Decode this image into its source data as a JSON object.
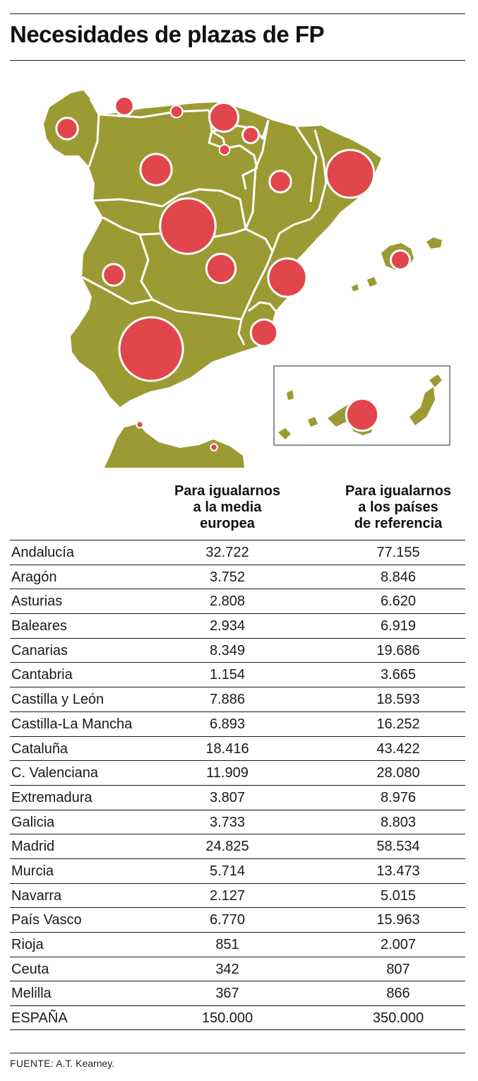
{
  "title": "Necesidades de plazas de FP",
  "colors": {
    "land": "#9c9a33",
    "bubble": "#e0464b",
    "border": "#ffffff"
  },
  "table": {
    "headers": [
      "Para igualarnos\na la media\neuropea",
      "Para igualarnos\na los países\nde referencia"
    ],
    "rows": [
      {
        "region": "Andalucía",
        "media_europea": "32.722",
        "paises_referencia": "77.155"
      },
      {
        "region": "Aragón",
        "media_europea": "3.752",
        "paises_referencia": "8.846"
      },
      {
        "region": "Asturias",
        "media_europea": "2.808",
        "paises_referencia": "6.620"
      },
      {
        "region": "Baleares",
        "media_europea": "2.934",
        "paises_referencia": "6.919"
      },
      {
        "region": "Canarias",
        "media_europea": "8.349",
        "paises_referencia": "19.686"
      },
      {
        "region": "Cantabria",
        "media_europea": "1.154",
        "paises_referencia": "3.665"
      },
      {
        "region": "Castilla y León",
        "media_europea": "7.886",
        "paises_referencia": "18.593"
      },
      {
        "region": "Castilla-La Mancha",
        "media_europea": "6.893",
        "paises_referencia": "16.252"
      },
      {
        "region": "Cataluña",
        "media_europea": "18.416",
        "paises_referencia": "43.422"
      },
      {
        "region": "C. Valenciana",
        "media_europea": "11.909",
        "paises_referencia": "28.080"
      },
      {
        "region": "Extremadura",
        "media_europea": "3.807",
        "paises_referencia": "8.976"
      },
      {
        "region": "Galicia",
        "media_europea": "3.733",
        "paises_referencia": "8.803"
      },
      {
        "region": "Madrid",
        "media_europea": "24.825",
        "paises_referencia": "58.534"
      },
      {
        "region": "Murcia",
        "media_europea": "5.714",
        "paises_referencia": "13.473"
      },
      {
        "region": "Navarra",
        "media_europea": "2.127",
        "paises_referencia": "5.015"
      },
      {
        "region": "País Vasco",
        "media_europea": "6.770",
        "paises_referencia": "15.963"
      },
      {
        "region": "Rioja",
        "media_europea": "851",
        "paises_referencia": "2.007"
      },
      {
        "region": "Ceuta",
        "media_europea": "342",
        "paises_referencia": "807"
      },
      {
        "region": "Melilla",
        "media_europea": "367",
        "paises_referencia": "866"
      },
      {
        "region": "ESPAÑA",
        "media_europea": "150.000",
        "paises_referencia": "350.000"
      }
    ]
  },
  "source_label": "FUENTE:",
  "source_text": " A.T. Kearney."
}
